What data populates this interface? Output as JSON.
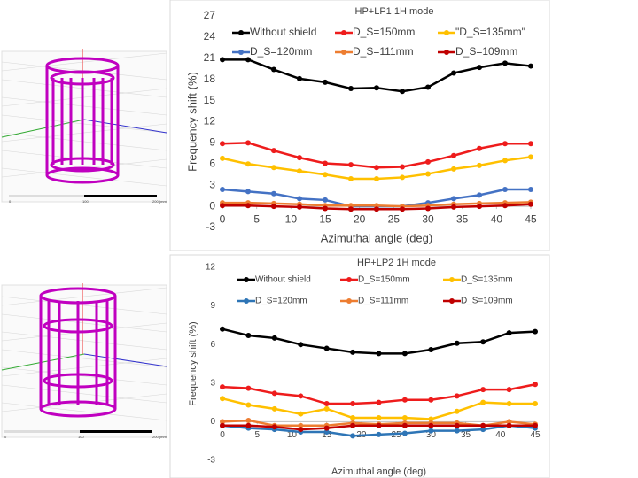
{
  "model_views": [
    {
      "scale_labels": [
        "0",
        "100",
        "200 (mm)"
      ]
    },
    {
      "scale_labels": [
        "0",
        "100",
        "200 (mm)"
      ]
    }
  ],
  "chart_data": [
    {
      "type": "line",
      "title": "HP+LP1   1H mode",
      "x_label": "Azimuthal angle (deg)",
      "y_label": "Frequency shift (%)",
      "x": [
        0,
        3.75,
        7.5,
        11.25,
        15,
        18.75,
        22.5,
        26.25,
        30,
        33.75,
        37.5,
        41.25,
        45
      ],
      "xlim": [
        0,
        45
      ],
      "xticks": [
        0,
        5,
        10,
        15,
        20,
        25,
        30,
        35,
        40,
        45
      ],
      "ylim": [
        -3,
        27
      ],
      "yticks": [
        -3,
        0,
        3,
        6,
        9,
        12,
        15,
        18,
        21,
        24,
        27
      ],
      "series": [
        {
          "name": "Without shield",
          "color": "#000000",
          "values": [
            20.8,
            20.8,
            19.4,
            18.1,
            17.6,
            16.7,
            16.8,
            16.3,
            16.9,
            18.9,
            19.7,
            20.3,
            19.9
          ]
        },
        {
          "name": "D_S=150mm",
          "color": "#ee1c1c",
          "values": [
            8.9,
            9.0,
            7.9,
            6.9,
            6.1,
            5.9,
            5.5,
            5.6,
            6.3,
            7.2,
            8.2,
            8.9,
            8.9
          ]
        },
        {
          "name": "\"D_S=135mm\"",
          "color": "#ffc000",
          "values": [
            6.8,
            6.0,
            5.5,
            5.0,
            4.5,
            3.9,
            3.9,
            4.1,
            4.6,
            5.3,
            5.8,
            6.5,
            7.0
          ]
        },
        {
          "name": "D_S=120mm",
          "color": "#4472c4",
          "values": [
            2.4,
            2.1,
            1.8,
            1.1,
            0.9,
            0,
            0,
            0,
            0.5,
            1.1,
            1.6,
            2.4,
            2.4
          ]
        },
        {
          "name": "D_S=111mm",
          "color": "#ed7d31",
          "values": [
            0.5,
            0.5,
            0.4,
            0.3,
            0.1,
            0.1,
            0.1,
            0,
            0.1,
            0.3,
            0.4,
            0.5,
            0.6
          ]
        },
        {
          "name": "D_S=109mm",
          "color": "#c00000",
          "values": [
            0.1,
            0.1,
            0,
            -0.1,
            -0.3,
            -0.4,
            -0.4,
            -0.4,
            -0.3,
            -0.1,
            0,
            0.1,
            0.3
          ]
        }
      ]
    },
    {
      "type": "line",
      "title": "HP+LP2   1H mode",
      "x_label": "Azimuthal angle (deg)",
      "y_label": "Frequency shift (%)",
      "x": [
        0,
        3.75,
        7.5,
        11.25,
        15,
        18.75,
        22.5,
        26.25,
        30,
        33.75,
        37.5,
        41.25,
        45
      ],
      "xlim": [
        0,
        45
      ],
      "xticks": [
        0,
        5,
        10,
        15,
        20,
        25,
        30,
        35,
        40,
        45
      ],
      "ylim": [
        -3,
        12
      ],
      "yticks": [
        -3,
        0,
        3,
        6,
        9,
        12
      ],
      "series": [
        {
          "name": "Without shield",
          "color": "#000000",
          "values": [
            7.2,
            6.7,
            6.5,
            6.0,
            5.7,
            5.4,
            5.3,
            5.3,
            5.6,
            6.1,
            6.2,
            6.9,
            7.0
          ]
        },
        {
          "name": "D_S=150mm",
          "color": "#ee1c1c",
          "values": [
            2.7,
            2.6,
            2.2,
            2.0,
            1.4,
            1.4,
            1.5,
            1.7,
            1.7,
            2.0,
            2.5,
            2.5,
            2.9
          ]
        },
        {
          "name": "D_S=135mm",
          "color": "#ffc000",
          "values": [
            1.8,
            1.3,
            1.0,
            0.6,
            1.0,
            0.3,
            0.3,
            0.3,
            0.2,
            0.8,
            1.5,
            1.4,
            1.4
          ]
        },
        {
          "name": "D_S=120mm",
          "color": "#2e75b6",
          "values": [
            -0.3,
            -0.5,
            -0.6,
            -0.8,
            -0.8,
            -1.1,
            -1.0,
            -0.9,
            -0.7,
            -0.7,
            -0.6,
            -0.3,
            -0.5
          ]
        },
        {
          "name": "D_S=111mm",
          "color": "#ed7d31",
          "values": [
            0,
            0.1,
            -0.3,
            -0.3,
            -0.3,
            -0.1,
            -0.2,
            -0.1,
            -0.1,
            -0.1,
            -0.3,
            0,
            -0.2
          ]
        },
        {
          "name": "D_S=109mm",
          "color": "#c00000",
          "values": [
            -0.3,
            -0.3,
            -0.4,
            -0.6,
            -0.5,
            -0.3,
            -0.3,
            -0.3,
            -0.3,
            -0.3,
            -0.3,
            -0.3,
            -0.3
          ]
        }
      ]
    }
  ]
}
